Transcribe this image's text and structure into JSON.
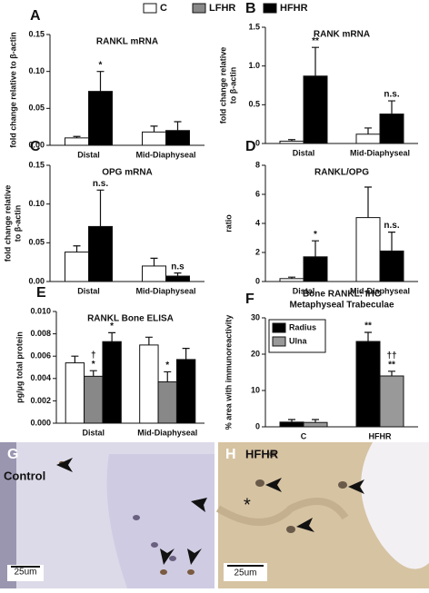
{
  "legend": [
    {
      "name": "C",
      "color": "#ffffff"
    },
    {
      "name": "LFHR",
      "color": "#888888"
    },
    {
      "name": "HFHR",
      "color": "#000000"
    }
  ],
  "chart_data": [
    {
      "type": "bar",
      "letter": "A",
      "title": [
        "RANKL mRNA"
      ],
      "ylabel": [
        "fold change relative to β-actin"
      ],
      "categories": [
        "Distal",
        "Mid-Diaphyseal"
      ],
      "ylim": [
        0,
        0.15
      ],
      "yticks": [
        {
          "value": 0,
          "label": "0.00"
        },
        0.05,
        {
          "value": 0.1,
          "label": "0.10"
        },
        0.15
      ],
      "series": [
        {
          "name": "C",
          "color": "#ffffff",
          "values": [
            0.01,
            0.018
          ],
          "errors": [
            0.002,
            0.008
          ],
          "annotations": [
            null,
            null
          ]
        },
        {
          "name": "HFHR",
          "color": "#000000",
          "values": [
            0.073,
            0.02
          ],
          "errors": [
            0.027,
            0.012
          ],
          "annotations": [
            [
              "*"
            ],
            null
          ]
        }
      ]
    },
    {
      "type": "bar",
      "letter": "B",
      "title": [
        "RANK mRNA"
      ],
      "ylabel": [
        "fold change relative",
        "to β-actin"
      ],
      "categories": [
        "Distal",
        "Mid-Diaphyseal"
      ],
      "ylim": [
        0,
        1.5
      ],
      "yticks": [
        0,
        0.5,
        {
          "value": 1,
          "label": "1.0"
        },
        1.5
      ],
      "series": [
        {
          "name": "C",
          "color": "#ffffff",
          "values": [
            0.03,
            0.12
          ],
          "errors": [
            0.02,
            0.08
          ],
          "annotations": [
            null,
            null
          ]
        },
        {
          "name": "HFHR",
          "color": "#000000",
          "values": [
            0.87,
            0.38
          ],
          "errors": [
            0.37,
            0.17
          ],
          "annotations": [
            [
              "**"
            ],
            [
              "n.s."
            ]
          ]
        }
      ]
    },
    {
      "type": "bar",
      "letter": "C",
      "title": [
        "OPG mRNA"
      ],
      "ylabel": [
        "fold change relative",
        "to β-actin"
      ],
      "categories": [
        "Distal",
        "Mid-Diaphyseal"
      ],
      "ylim": [
        0,
        0.15
      ],
      "yticks": [
        {
          "value": 0,
          "label": "0.00"
        },
        0.05,
        {
          "value": 0.1,
          "label": "0.10"
        },
        0.15
      ],
      "series": [
        {
          "name": "C",
          "color": "#ffffff",
          "values": [
            0.038,
            0.02
          ],
          "errors": [
            0.008,
            0.01
          ],
          "annotations": [
            null,
            null
          ]
        },
        {
          "name": "HFHR",
          "color": "#000000",
          "values": [
            0.071,
            0.007
          ],
          "errors": [
            0.047,
            0.004
          ],
          "annotations": [
            [
              "n.s."
            ],
            [
              "n.s"
            ]
          ]
        }
      ]
    },
    {
      "type": "bar",
      "letter": "D",
      "title": [
        "RANKL/OPG"
      ],
      "ylabel": [
        "ratio"
      ],
      "categories": [
        "Distal",
        "Mid-Diaphyseal"
      ],
      "ylim": [
        0,
        8
      ],
      "yticks": [
        0,
        2,
        4,
        6,
        8
      ],
      "series": [
        {
          "name": "C",
          "color": "#ffffff",
          "values": [
            0.2,
            4.4
          ],
          "errors": [
            0.1,
            2.1
          ],
          "annotations": [
            null,
            null
          ]
        },
        {
          "name": "HFHR",
          "color": "#000000",
          "values": [
            1.7,
            2.1
          ],
          "errors": [
            1.1,
            1.3
          ],
          "annotations": [
            [
              "*"
            ],
            [
              "n.s."
            ]
          ]
        }
      ]
    },
    {
      "type": "bar",
      "letter": "E",
      "title": [
        "RANKL Bone ELISA"
      ],
      "ylabel": [
        "pg/µg total protein"
      ],
      "categories": [
        "Distal",
        "Mid-Diaphyseal"
      ],
      "ylim": [
        0,
        0.01
      ],
      "yticks": [
        {
          "value": 0,
          "label": "0.000"
        },
        {
          "value": 0.002,
          "label": "0.002"
        },
        {
          "value": 0.004,
          "label": "0.004"
        },
        {
          "value": 0.006,
          "label": "0.006"
        },
        {
          "value": 0.008,
          "label": "0.008"
        },
        {
          "value": 0.01,
          "label": "0.010"
        }
      ],
      "series": [
        {
          "name": "C",
          "color": "#ffffff",
          "values": [
            0.0054,
            0.007
          ],
          "errors": [
            0.0006,
            0.0007
          ],
          "annotations": [
            null,
            null
          ]
        },
        {
          "name": "LFHR",
          "color": "#888888",
          "values": [
            0.0042,
            0.0037
          ],
          "errors": [
            0.0005,
            0.0009
          ],
          "annotations": [
            [
              "†",
              "*"
            ],
            [
              "*"
            ]
          ]
        },
        {
          "name": "HFHR",
          "color": "#000000",
          "values": [
            0.0073,
            0.0057
          ],
          "errors": [
            0.0008,
            0.001
          ],
          "annotations": [
            [
              "*"
            ],
            null
          ]
        }
      ]
    },
    {
      "type": "bar",
      "letter": "F",
      "title": [
        "Bone RANKL: IHC",
        "Metaphyseal Trabeculae"
      ],
      "ylabel": [
        "% area with immunoreactivity"
      ],
      "categories": [
        "C",
        "HFHR"
      ],
      "ylim": [
        0,
        30
      ],
      "yticks": [
        0,
        10,
        20,
        30
      ],
      "legend_position": "top-left",
      "series": [
        {
          "name": "Radius",
          "color": "#000000",
          "values": [
            1.3,
            23.5
          ],
          "errors": [
            0.7,
            2.5
          ],
          "annotations": [
            null,
            [
              "**"
            ]
          ]
        },
        {
          "name": "Ulna",
          "color": "#999999",
          "values": [
            1.2,
            14
          ],
          "errors": [
            0.8,
            1.3
          ],
          "annotations": [
            null,
            [
              "††",
              "**"
            ]
          ]
        }
      ]
    }
  ],
  "images": [
    {
      "letter": "G",
      "label": "Control",
      "scale": "25um"
    },
    {
      "letter": "H",
      "label": "HFHR",
      "scale": "25um",
      "mark": "*"
    }
  ]
}
